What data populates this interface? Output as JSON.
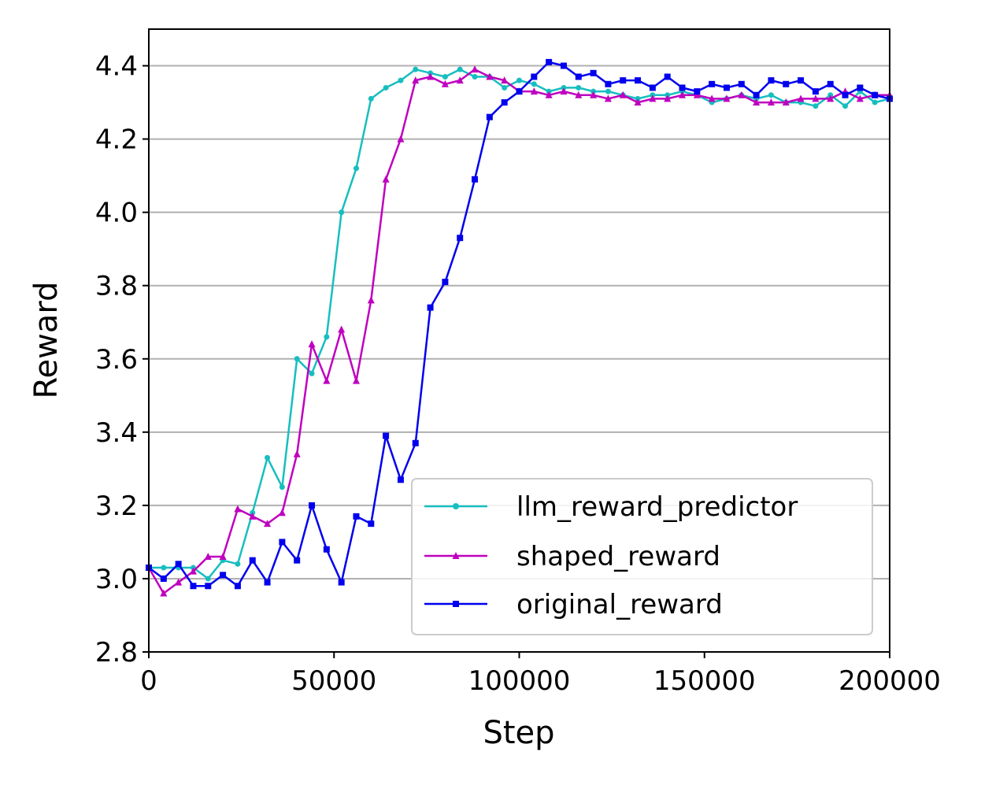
{
  "chart_data": {
    "type": "line",
    "title": "",
    "xlabel": "Step",
    "ylabel": "Reward",
    "xlim": [
      0,
      200000
    ],
    "ylim": [
      2.8,
      4.5
    ],
    "xticks": [
      0,
      50000,
      100000,
      150000,
      200000
    ],
    "yticks": [
      2.8,
      3.0,
      3.2,
      3.4,
      3.6,
      3.8,
      4.0,
      4.2,
      4.4
    ],
    "xtick_labels": [
      "0",
      "50000",
      "100000",
      "150000",
      "200000"
    ],
    "ytick_labels": [
      "2.8",
      "3.0",
      "3.2",
      "3.4",
      "3.6",
      "3.8",
      "4.0",
      "4.2",
      "4.4"
    ],
    "grid": "horizontal",
    "legend_position": "lower-right",
    "x": [
      0,
      4000,
      8000,
      12000,
      16000,
      20000,
      24000,
      28000,
      32000,
      36000,
      40000,
      44000,
      48000,
      52000,
      56000,
      60000,
      64000,
      68000,
      72000,
      76000,
      80000,
      84000,
      88000,
      92000,
      96000,
      100000,
      104000,
      108000,
      112000,
      116000,
      120000,
      124000,
      128000,
      132000,
      136000,
      140000,
      144000,
      148000,
      152000,
      156000,
      160000,
      164000,
      168000,
      172000,
      176000,
      180000,
      184000,
      188000,
      192000,
      196000,
      200000
    ],
    "series": [
      {
        "name": "llm_reward_predictor",
        "color": "#17bec0",
        "marker": "circle",
        "values": [
          3.03,
          3.03,
          3.03,
          3.03,
          3.0,
          3.05,
          3.04,
          3.18,
          3.33,
          3.25,
          3.6,
          3.56,
          3.66,
          4.0,
          4.12,
          4.31,
          4.34,
          4.36,
          4.39,
          4.38,
          4.37,
          4.39,
          4.37,
          4.37,
          4.34,
          4.36,
          4.35,
          4.33,
          4.34,
          4.34,
          4.33,
          4.33,
          4.32,
          4.31,
          4.32,
          4.32,
          4.33,
          4.32,
          4.3,
          4.31,
          4.32,
          4.31,
          4.32,
          4.3,
          4.3,
          4.29,
          4.32,
          4.29,
          4.33,
          4.3,
          4.31
        ]
      },
      {
        "name": "shaped_reward",
        "color": "#bf00bf",
        "marker": "triangle",
        "values": [
          3.03,
          2.96,
          2.99,
          3.02,
          3.06,
          3.06,
          3.19,
          3.17,
          3.15,
          3.18,
          3.34,
          3.64,
          3.54,
          3.68,
          3.54,
          3.76,
          4.09,
          4.2,
          4.36,
          4.37,
          4.35,
          4.36,
          4.39,
          4.37,
          4.36,
          4.33,
          4.33,
          4.32,
          4.33,
          4.32,
          4.32,
          4.31,
          4.32,
          4.3,
          4.31,
          4.31,
          4.32,
          4.32,
          4.31,
          4.31,
          4.32,
          4.3,
          4.3,
          4.3,
          4.31,
          4.31,
          4.31,
          4.33,
          4.31,
          4.32,
          4.32
        ]
      },
      {
        "name": "original_reward",
        "color": "#0000ee",
        "marker": "square",
        "values": [
          3.03,
          3.0,
          3.04,
          2.98,
          2.98,
          3.01,
          2.98,
          3.05,
          2.99,
          3.1,
          3.05,
          3.2,
          3.08,
          2.99,
          3.17,
          3.15,
          3.39,
          3.27,
          3.37,
          3.74,
          3.81,
          3.93,
          4.09,
          4.26,
          4.3,
          4.33,
          4.37,
          4.41,
          4.4,
          4.37,
          4.38,
          4.35,
          4.36,
          4.36,
          4.34,
          4.37,
          4.34,
          4.33,
          4.35,
          4.34,
          4.35,
          4.32,
          4.36,
          4.35,
          4.36,
          4.33,
          4.35,
          4.32,
          4.34,
          4.32,
          4.31
        ]
      }
    ]
  }
}
